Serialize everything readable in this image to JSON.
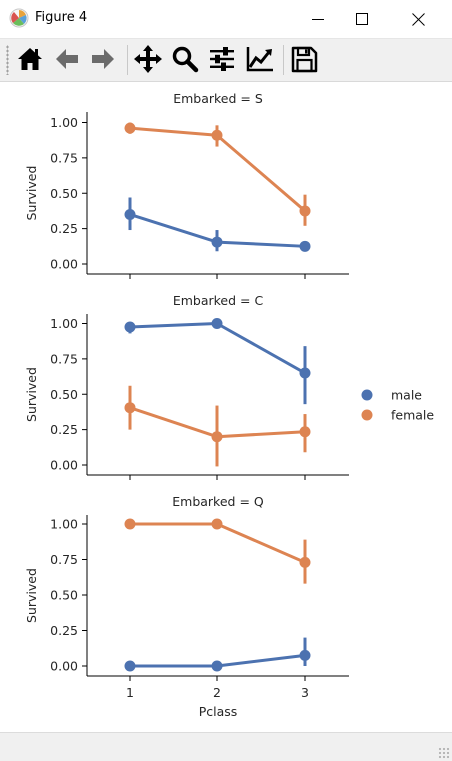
{
  "window": {
    "title": "Figure 4"
  },
  "toolbar": {
    "buttons": [
      {
        "name": "home-icon"
      },
      {
        "name": "back-icon"
      },
      {
        "name": "forward-icon"
      },
      {
        "name": "pan-icon"
      },
      {
        "name": "zoom-icon"
      },
      {
        "name": "configure-subplots-icon"
      },
      {
        "name": "edit-axis-icon"
      },
      {
        "name": "save-icon"
      }
    ]
  },
  "chart_data": {
    "type": "pointplot",
    "xlabel": "Pclass",
    "ylabel": "Survived",
    "categories": [
      "1",
      "2",
      "3"
    ],
    "ylim": [
      -0.05,
      1.08
    ],
    "yticks": [
      "0.00",
      "0.25",
      "0.50",
      "0.75",
      "1.00"
    ],
    "grid": false,
    "legend": {
      "placement": "right",
      "entries": [
        {
          "name": "male",
          "color": "#4c72b0"
        },
        {
          "name": "female",
          "color": "#dd8452"
        }
      ]
    },
    "panels": [
      {
        "title": "Embarked = S",
        "series": [
          {
            "name": "male",
            "color": "#4c72b0",
            "values": [
              0.35,
              0.155,
              0.125
            ],
            "ci": [
              [
                0.24,
                0.47
              ],
              [
                0.09,
                0.24
              ],
              [
                0.1,
                0.16
              ]
            ]
          },
          {
            "name": "female",
            "color": "#dd8452",
            "values": [
              0.96,
              0.91,
              0.375
            ],
            "ci": [
              [
                0.92,
                1.0
              ],
              [
                0.83,
                0.98
              ],
              [
                0.27,
                0.49
              ]
            ]
          }
        ]
      },
      {
        "title": "Embarked = C",
        "series": [
          {
            "name": "male",
            "color": "#4c72b0",
            "values": [
              0.975,
              1.0,
              0.65
            ],
            "ci": [
              [
                0.93,
                1.0
              ],
              [
                1.0,
                1.0
              ],
              [
                0.43,
                0.84
              ]
            ]
          },
          {
            "name": "female",
            "color": "#dd8452",
            "values": [
              0.405,
              0.2,
              0.235
            ],
            "ci": [
              [
                0.25,
                0.56
              ],
              [
                -0.01,
                0.42
              ],
              [
                0.09,
                0.36
              ]
            ]
          }
        ]
      },
      {
        "title": "Embarked = Q",
        "series": [
          {
            "name": "male",
            "color": "#4c72b0",
            "values": [
              0.0,
              0.0,
              0.075
            ],
            "ci": [
              [
                0.0,
                0.0
              ],
              [
                0.0,
                0.0
              ],
              [
                0.0,
                0.2
              ]
            ]
          },
          {
            "name": "female",
            "color": "#dd8452",
            "values": [
              1.0,
              1.0,
              0.73
            ],
            "ci": [
              [
                1.0,
                1.0
              ],
              [
                1.0,
                1.0
              ],
              [
                0.58,
                0.89
              ]
            ]
          }
        ]
      }
    ]
  }
}
